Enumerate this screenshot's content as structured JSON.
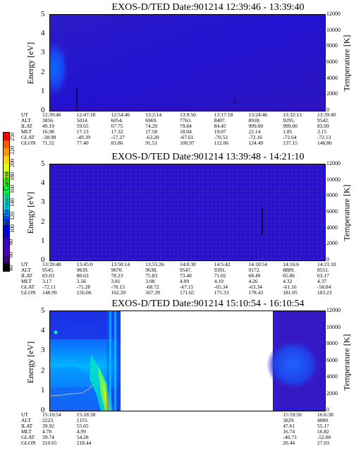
{
  "colorbar": {
    "label": "Second Harmonic Current",
    "ticks": [
      "250",
      "220",
      "200",
      "180",
      "160",
      "140",
      "120",
      "100",
      "80",
      "60",
      "40"
    ],
    "colors": [
      "#ff0000",
      "#ff5a00",
      "#ff9600",
      "#ffd200",
      "#e6ff00",
      "#a0ff00",
      "#32ff00",
      "#00ff46",
      "#00ffb4",
      "#00e6ff",
      "#0096ff",
      "#0046ff",
      "#0000ff",
      "#1e00e6",
      "#3c00c8",
      "#5000b4",
      "#3c0078",
      "#000000"
    ]
  },
  "panels": [
    {
      "title": "EXOS-D/TED   Date:901214   12:39:46 - 13:39:40",
      "ylabel": "Energy [eV]",
      "y2label": "Temperature [K]",
      "yticks": [
        "5",
        "4",
        "3",
        "2",
        "1",
        "0"
      ],
      "y2ticks": [
        "12000",
        "10000",
        "8000",
        "6000",
        "4000",
        "2000",
        "0"
      ],
      "ephem_labels": [
        "UT",
        "ALT",
        "ILAT",
        "MLT",
        "GLAT",
        "GLON"
      ],
      "ephem_cols": [
        [
          "12:39:46",
          "3856.",
          "49.19",
          "16.98",
          "-38.98",
          "71.52"
        ],
        [
          "12:47:18",
          "5014.",
          "59.65",
          "17.13",
          "-49.39",
          "77.40"
        ],
        [
          "12:54:46",
          "6054.",
          "67.75",
          "17.32",
          "-57.27",
          "83.86"
        ],
        [
          "13:2:14",
          "6969.",
          "74.29",
          "17.58",
          "-63.20",
          "91.51"
        ],
        [
          "13:9:50",
          "7763.",
          "79.84",
          "18.04",
          "-67.61",
          "100.97"
        ],
        [
          "13:17:18",
          "8407.",
          "84.45",
          "19.07",
          "-70.52",
          "112.06"
        ],
        [
          "13:24:46",
          "8918.",
          "999.00",
          "22.14",
          "-72.16",
          "124.49"
        ],
        [
          "13:32:13",
          "9295.",
          "999.00",
          "1.85",
          "-72.64",
          "137.15"
        ],
        [
          "13:39:40",
          "9542.",
          "83.09",
          "3.15",
          "-72.13",
          "148.80"
        ]
      ]
    },
    {
      "title": "EXOS-D/TED   Date:901214   13:39:48 - 14:21:10",
      "ylabel": "Energy [eV]",
      "y2label": "Temperature [K]",
      "yticks": [
        "5",
        "4",
        "3",
        "2",
        "1",
        "0"
      ],
      "y2ticks": [
        "12000",
        "10000",
        "8000",
        "6000",
        "4000",
        "2000",
        "0"
      ],
      "ephem_labels": [
        "UT",
        "ALT",
        "ILAT",
        "MLT",
        "GLAT",
        "GLON"
      ],
      "ephem_cols": [
        [
          "13:39:48",
          "9545.",
          "83.03",
          "3.17",
          "-72.11",
          "148.99"
        ],
        [
          "13:45:0",
          "9639.",
          "80.63",
          "3.56",
          "-71.28",
          "156.06"
        ],
        [
          "13:50:14",
          "9670.",
          "78.23",
          "3.81",
          "-70.13",
          "162.20"
        ],
        [
          "13:55:26",
          "9638.",
          "75.83",
          "3.98",
          "-68.72",
          "167.39"
        ],
        [
          "14:0:30",
          "9547.",
          "73.48",
          "4.09",
          "-67.15",
          "171.65"
        ],
        [
          "14:5:42",
          "9391.",
          "71.02",
          "4.19",
          "-65.34",
          "175.33"
        ],
        [
          "14:10:54",
          "9172.",
          "68.49",
          "4.26",
          "-63.34",
          "178.43"
        ],
        [
          "14:16:6",
          "8889.",
          "65.86",
          "4.32",
          "-61.16",
          "181.05"
        ],
        [
          "14:21:10",
          "8551.",
          "63.17",
          "4.37",
          "-58.84",
          "183.23"
        ]
      ]
    },
    {
      "title": "EXOS-D/TED   Date:901214   15:10:54 - 16:10:54",
      "ylabel": "Energy [eV]",
      "y2label": "Temperature [K]",
      "yticks": [
        "5",
        "4",
        "3",
        "2",
        "1",
        "0"
      ],
      "y2ticks": [
        "12000",
        "10000",
        "8000",
        "6000",
        "4000",
        "2000",
        "0"
      ],
      "ephem_labels": [
        "UT",
        "ALT",
        "ILAT",
        "MLT",
        "GLAT",
        "GLON"
      ],
      "ephem_cols": [
        [
          "15:10:54",
          "2223.",
          "39.92",
          "4.78",
          "39.74",
          "210.65"
        ],
        [
          "15:18:30",
          "1155.",
          "55.65",
          "4.99",
          "54.28",
          "218.44"
        ],
        [
          "",
          "",
          "",
          "",
          "",
          ""
        ],
        [
          "",
          "",
          "",
          "",
          "",
          ""
        ],
        [
          "",
          "",
          "",
          "",
          "",
          ""
        ],
        [
          "",
          "",
          "",
          "",
          "",
          ""
        ],
        [
          "",
          "",
          "",
          "",
          "",
          ""
        ],
        [
          "15:59:50",
          "3829.",
          "47.61",
          "16.74",
          "-40.73",
          "20.44"
        ],
        [
          "16:6:38",
          "4880.",
          "55.17",
          "16.82",
          "-52.80",
          "27.03"
        ]
      ]
    }
  ],
  "chart_data": [
    {
      "type": "heatmap",
      "title": "EXOS-D/TED   Date:901214   12:39:46 - 13:39:40",
      "xlabel": "",
      "ylabel": "Energy [eV]",
      "y2label": "Temperature [K]",
      "ylim": [
        0,
        5
      ],
      "y2lim": [
        0,
        12000
      ],
      "colorbar_label": "Second Harmonic Current",
      "colorbar_range": [
        40,
        250
      ],
      "x": [
        "12:39:46",
        "12:47:18",
        "12:54:46",
        "13:2:14",
        "13:9:50",
        "13:17:18",
        "13:24:46",
        "13:32:13",
        "13:39:40"
      ]
    },
    {
      "type": "heatmap",
      "title": "EXOS-D/TED   Date:901214   13:39:48 - 14:21:10",
      "xlabel": "",
      "ylabel": "Energy [eV]",
      "y2label": "Temperature [K]",
      "ylim": [
        0,
        5
      ],
      "y2lim": [
        0,
        12000
      ],
      "colorbar_label": "Second Harmonic Current",
      "colorbar_range": [
        40,
        250
      ],
      "x": [
        "13:39:48",
        "13:45:0",
        "13:50:14",
        "13:55:26",
        "14:0:30",
        "14:5:42",
        "14:10:54",
        "14:16:6",
        "14:21:10"
      ]
    },
    {
      "type": "heatmap",
      "title": "EXOS-D/TED   Date:901214   15:10:54 - 16:10:54",
      "xlabel": "",
      "ylabel": "Energy [eV]",
      "y2label": "Temperature [K]",
      "ylim": [
        0,
        5
      ],
      "y2lim": [
        0,
        12000
      ],
      "colorbar_label": "Second Harmonic Current",
      "colorbar_range": [
        40,
        250
      ],
      "x": [
        "15:10:54",
        "15:18:30",
        "15:59:50",
        "16:6:38"
      ]
    }
  ]
}
